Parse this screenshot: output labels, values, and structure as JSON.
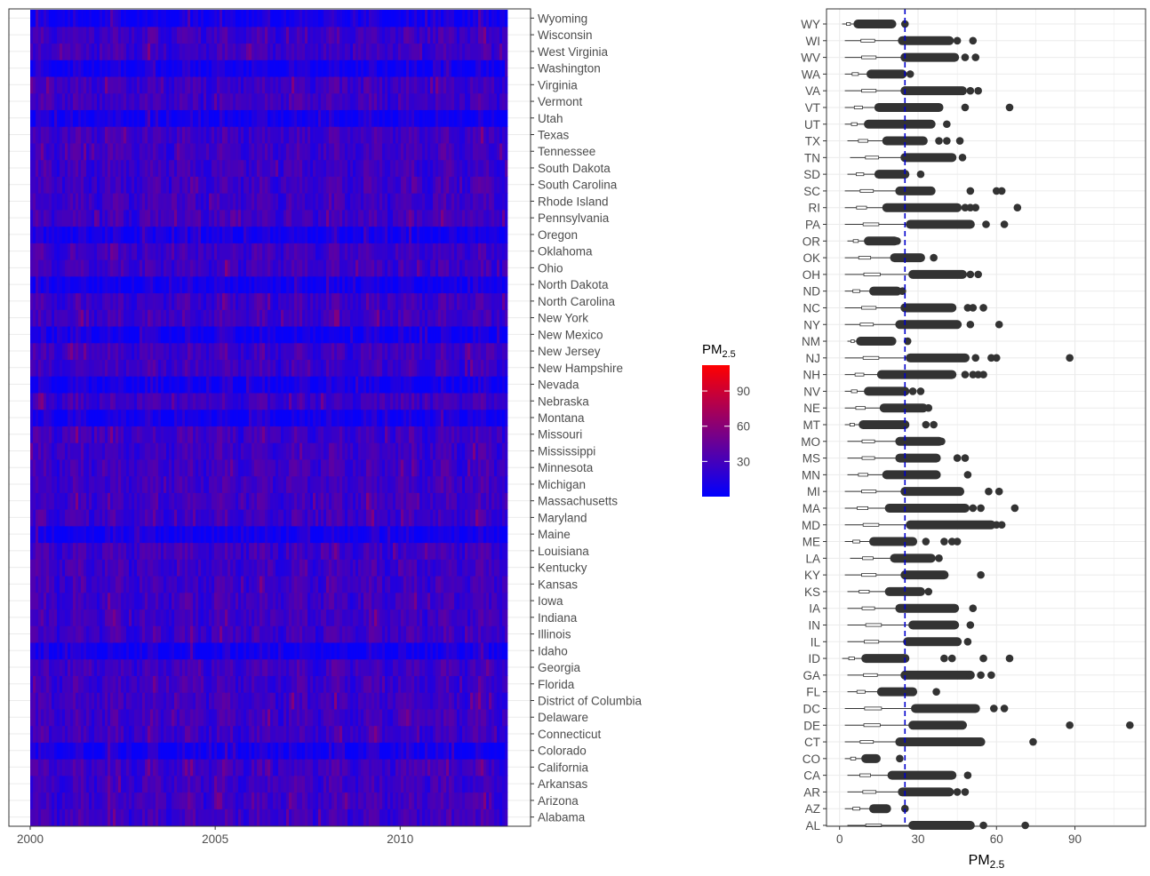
{
  "colors": {
    "low": "#0000ff",
    "high": "#ff0000",
    "panel_border": "#333333",
    "grid": "#ebebeb",
    "point": "#333333",
    "ref_line": "#0000cc"
  },
  "chart_data": [
    {
      "type": "heatmap",
      "title": "",
      "xlabel": "",
      "ylabel": "",
      "x_range": [
        2000,
        2012.9
      ],
      "x_ticks": [
        "2000",
        "2005",
        "2010"
      ],
      "x_tick_values": [
        2000,
        2005,
        2010
      ],
      "states": [
        "Alabama",
        "Arizona",
        "Arkansas",
        "California",
        "Colorado",
        "Connecticut",
        "Delaware",
        "District of Columbia",
        "Florida",
        "Georgia",
        "Idaho",
        "Illinois",
        "Indiana",
        "Iowa",
        "Kansas",
        "Kentucky",
        "Louisiana",
        "Maine",
        "Maryland",
        "Massachusetts",
        "Michigan",
        "Minnesota",
        "Mississippi",
        "Missouri",
        "Montana",
        "Nebraska",
        "Nevada",
        "New Hampshire",
        "New Jersey",
        "New Mexico",
        "New York",
        "North Carolina",
        "North Dakota",
        "Ohio",
        "Oklahoma",
        "Oregon",
        "Pennsylvania",
        "Rhode Island",
        "South Carolina",
        "South Dakota",
        "Tennessee",
        "Texas",
        "Utah",
        "Vermont",
        "Virginia",
        "Washington",
        "West Virginia",
        "Wisconsin",
        "Wyoming"
      ],
      "legend": {
        "title_main": "PM",
        "title_sub": "2.5",
        "ticks": [
          "30",
          "60",
          "90"
        ],
        "tick_values": [
          30,
          60,
          90
        ],
        "range": [
          0,
          112
        ],
        "position": "right"
      }
    },
    {
      "type": "boxplot",
      "title": "",
      "xlabel_main": "PM",
      "xlabel_sub": "2.5",
      "x_ticks": [
        "0",
        "30",
        "60",
        "90"
      ],
      "x_tick_values": [
        0,
        30,
        60,
        90
      ],
      "xlim": [
        -5,
        117
      ],
      "reference_line": 25,
      "grid": true,
      "categories": [
        "AL",
        "AZ",
        "AR",
        "CA",
        "CO",
        "CT",
        "DE",
        "DC",
        "FL",
        "GA",
        "ID",
        "IL",
        "IN",
        "IA",
        "KS",
        "KY",
        "LA",
        "ME",
        "MD",
        "MA",
        "MI",
        "MN",
        "MS",
        "MO",
        "MT",
        "NE",
        "NV",
        "NH",
        "NJ",
        "NM",
        "NY",
        "NC",
        "ND",
        "OH",
        "OK",
        "OR",
        "PA",
        "RI",
        "SC",
        "SD",
        "TN",
        "TX",
        "UT",
        "VT",
        "VA",
        "WA",
        "WV",
        "WI",
        "WY"
      ],
      "whisker_low": [
        3,
        2,
        3,
        3,
        2,
        2,
        2,
        2,
        3,
        3,
        1,
        3,
        3,
        3,
        3,
        2,
        4,
        2,
        2,
        2,
        2,
        3,
        3,
        3,
        2,
        2,
        2,
        2,
        2,
        3,
        2,
        2,
        2,
        2,
        2,
        3,
        2,
        2,
        2,
        3,
        4,
        3,
        2,
        2,
        2,
        2,
        2,
        2,
        1
      ],
      "outlier_start": [
        28,
        13,
        24,
        20,
        10,
        23,
        28,
        29,
        16,
        25,
        10,
        26,
        28,
        23,
        19,
        25,
        21,
        13,
        27,
        19,
        25,
        18,
        23,
        23,
        9,
        17,
        11,
        16,
        27,
        8,
        23,
        25,
        13,
        28,
        21,
        11,
        27,
        18,
        23,
        15,
        25,
        18,
        11,
        15,
        25,
        12,
        25,
        24,
        7
      ],
      "outlier_end": [
        50,
        18,
        42,
        43,
        14,
        54,
        47,
        52,
        28,
        50,
        25,
        45,
        44,
        44,
        31,
        40,
        35,
        28,
        58,
        48,
        46,
        37,
        37,
        38,
        25,
        32,
        25,
        43,
        48,
        20,
        45,
        43,
        22,
        47,
        31,
        21,
        50,
        45,
        35,
        25,
        43,
        32,
        35,
        38,
        47,
        24,
        44,
        42,
        20
      ],
      "extreme_outliers": [
        [
          55,
          71
        ],
        [
          25
        ],
        [
          45,
          48
        ],
        [
          49
        ],
        [
          23
        ],
        [
          74
        ],
        [
          88,
          111
        ],
        [
          59,
          63
        ],
        [
          37
        ],
        [
          50,
          54,
          58
        ],
        [
          40,
          43,
          55,
          65
        ],
        [
          49
        ],
        [
          50
        ],
        [
          51
        ],
        [
          34
        ],
        [
          54
        ],
        [
          38
        ],
        [
          33,
          40,
          43,
          45
        ],
        [
          60,
          62
        ],
        [
          51,
          54,
          67
        ],
        [
          57,
          61
        ],
        [
          49
        ],
        [
          45,
          48
        ],
        [
          39
        ],
        [
          33,
          36
        ],
        [
          34
        ],
        [
          28,
          31
        ],
        [
          48,
          51,
          53,
          55
        ],
        [
          52,
          58,
          60,
          88
        ],
        [
          26
        ],
        [
          50,
          61
        ],
        [
          49,
          51,
          55
        ],
        [
          24
        ],
        [
          50,
          53
        ],
        [
          36
        ],
        [
          22
        ],
        [
          56,
          63
        ],
        [
          48,
          50,
          52,
          68
        ],
        [
          50,
          60,
          62
        ],
        [
          31
        ],
        [
          47
        ],
        [
          38,
          41,
          46
        ],
        [
          41
        ],
        [
          48,
          65
        ],
        [
          50,
          53
        ],
        [
          27
        ],
        [
          48,
          52
        ],
        [
          45,
          51
        ],
        [
          25
        ]
      ]
    }
  ]
}
